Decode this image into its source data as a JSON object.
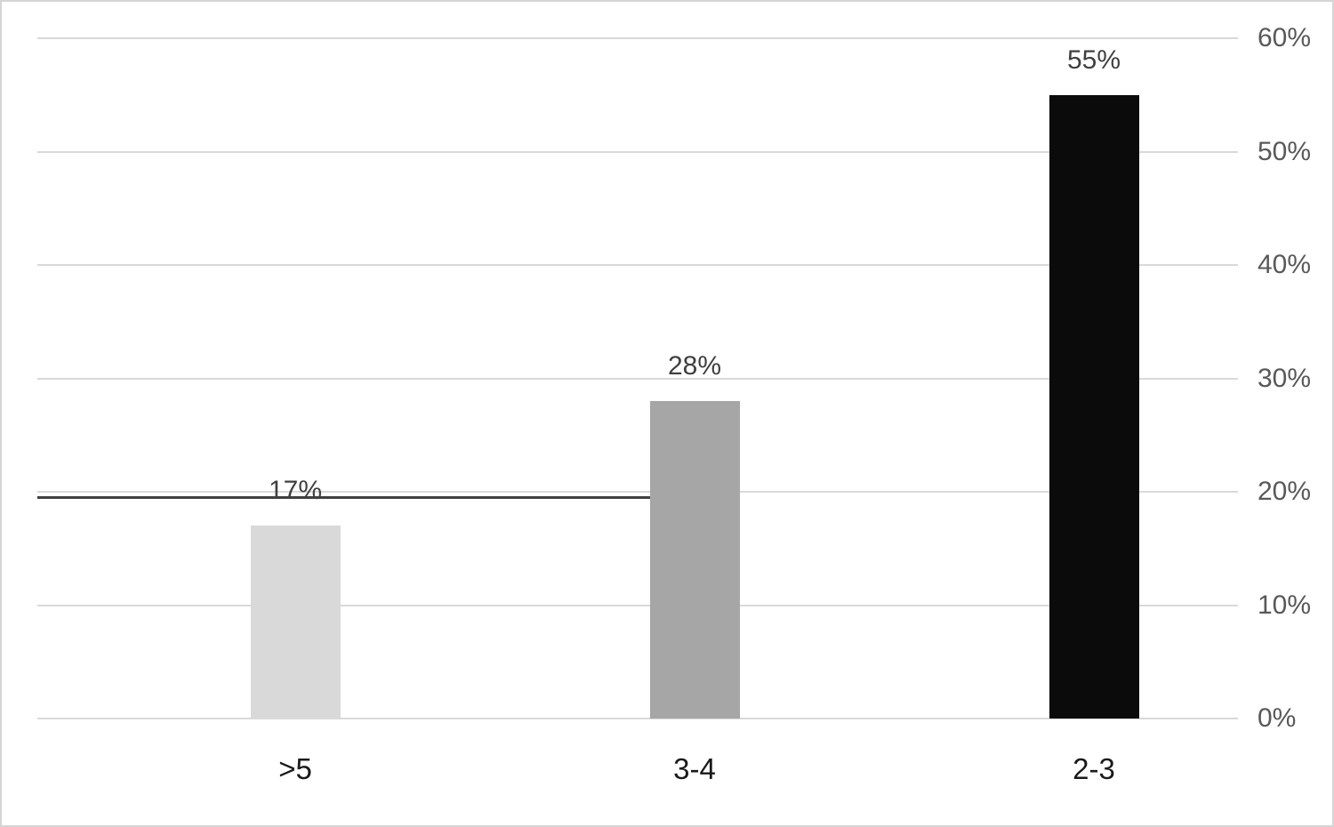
{
  "chart_data": {
    "type": "bar",
    "title": "",
    "xlabel": "",
    "ylabel": "",
    "categories": [
      ">5",
      "3-4",
      "2-3"
    ],
    "values": [
      17,
      28,
      55
    ],
    "data_labels": [
      "17%",
      "28%",
      "55%"
    ],
    "bar_colors": [
      "#d9d9d9",
      "#a6a6a6",
      "#0b0b0b"
    ],
    "ylim": [
      0,
      60
    ],
    "yticks": [
      0,
      10,
      20,
      30,
      40,
      50,
      60
    ],
    "ytick_labels": [
      "0%",
      "10%",
      "20%",
      "30%",
      "40%",
      "50%",
      "60%"
    ],
    "y_axis_side": "right",
    "grid": "horizontal-only",
    "gridline_color": "#d9d9d9",
    "legend": "none",
    "reference_line": {
      "value_pct": 19.5,
      "color": "#404040",
      "extent": "from plot left edge to left edge of the 3-4 bar"
    }
  }
}
